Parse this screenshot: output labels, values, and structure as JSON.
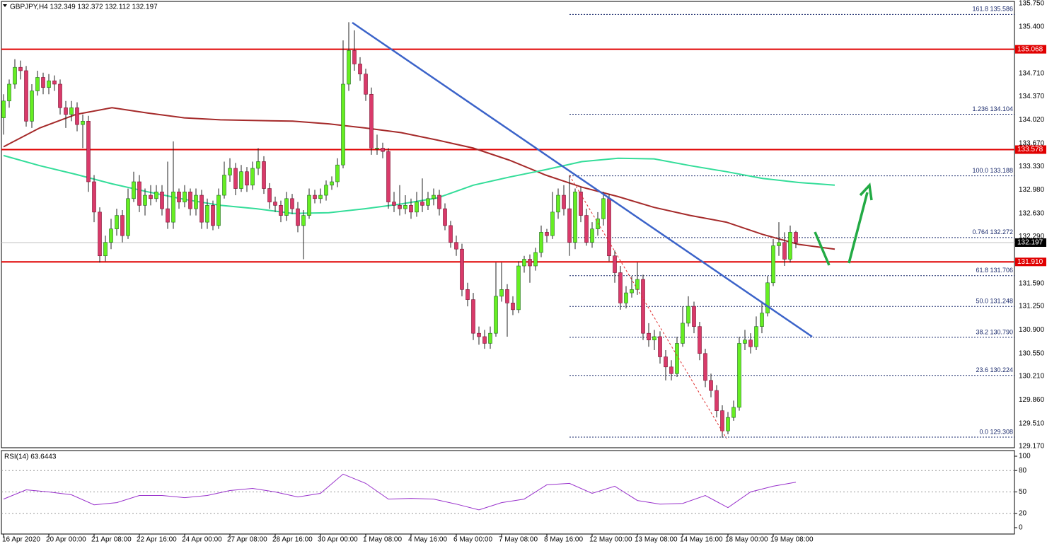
{
  "chart_data": {
    "type": "candlestick",
    "title": "GBPJPY,H4  132.349 132.372 132.112 132.197",
    "bull_color": "#66ee22",
    "bear_color": "#d93a6a",
    "ylim": [
      129.15,
      135.8
    ],
    "yticks": [
      {
        "value": 135.75,
        "label": "135.750"
      },
      {
        "value": 135.4,
        "label": "135.400"
      },
      {
        "value": 134.71,
        "label": "134.710"
      },
      {
        "value": 134.37,
        "label": "134.370"
      },
      {
        "value": 134.02,
        "label": "134.020"
      },
      {
        "value": 133.67,
        "label": "133.670"
      },
      {
        "value": 133.33,
        "label": "133.330"
      },
      {
        "value": 132.98,
        "label": "132.980"
      },
      {
        "value": 132.63,
        "label": "132.630"
      },
      {
        "value": 132.29,
        "label": "132.290"
      },
      {
        "value": 131.59,
        "label": "131.590"
      },
      {
        "value": 131.25,
        "label": "131.250"
      },
      {
        "value": 130.9,
        "label": "130.900"
      },
      {
        "value": 130.55,
        "label": "130.550"
      },
      {
        "value": 130.21,
        "label": "130.210"
      },
      {
        "value": 129.86,
        "label": "129.860"
      },
      {
        "value": 129.51,
        "label": "129.510"
      },
      {
        "value": 129.17,
        "label": "129.170"
      }
    ],
    "xticklabels": [
      "16 Apr 2020",
      "20 Apr 00:00",
      "21 Apr 08:00",
      "22 Apr 16:00",
      "24 Apr 00:00",
      "27 Apr 08:00",
      "28 Apr 16:00",
      "30 Apr 00:00",
      "1 May 08:00",
      "4 May 16:00",
      "6 May 00:00",
      "7 May 08:00",
      "8 May 16:00",
      "12 May 00:00",
      "13 May 08:00",
      "14 May 16:00",
      "18 May 00:00",
      "19 May 08:00"
    ],
    "open": [
      134.05,
      134.3,
      134.55,
      134.8,
      134.75,
      134.0,
      134.45,
      134.65,
      134.5,
      134.6,
      134.55,
      134.2,
      134.1,
      134.2,
      133.95,
      134.0,
      133.1,
      132.65,
      132.0,
      132.2,
      132.4,
      132.6,
      132.3,
      132.85,
      133.1,
      132.75,
      132.9,
      132.85,
      132.95,
      132.7,
      132.5,
      132.95,
      132.8,
      132.95,
      132.7,
      132.9,
      132.5,
      132.75,
      132.45,
      132.9,
      133.2,
      133.3,
      133.0,
      133.25,
      133.05,
      133.3,
      133.4,
      133.0,
      132.8,
      132.75,
      132.6,
      132.85,
      132.7,
      132.45,
      132.6,
      132.9,
      132.85,
      132.9,
      133.05,
      133.1,
      133.35,
      134.55,
      135.05,
      134.85,
      134.7,
      134.4,
      133.6,
      133.6,
      133.55,
      132.8,
      132.75,
      132.7,
      132.75,
      132.65,
      132.8,
      132.75,
      132.85,
      132.9,
      132.7,
      132.45,
      132.2,
      132.1,
      131.5,
      131.35,
      130.85,
      130.8,
      130.7,
      130.85,
      131.4,
      131.5,
      131.3,
      131.2,
      131.85,
      131.95,
      131.85,
      132.05,
      132.35,
      132.3,
      132.65,
      132.9,
      132.7,
      132.2,
      132.95,
      132.6,
      132.2,
      132.4,
      132.55,
      132.85,
      132.0,
      131.75,
      131.3,
      131.45,
      131.5,
      131.65,
      130.85,
      130.75,
      130.8,
      130.5,
      130.35,
      130.25,
      130.7,
      131.0,
      131.25,
      130.95,
      130.55,
      130.15,
      130.0,
      129.7,
      129.4,
      129.6,
      129.75,
      130.7,
      130.75,
      130.65,
      130.95,
      131.15,
      131.6,
      132.15,
      132.2,
      131.95,
      132.349
    ],
    "high": [
      134.4,
      134.62,
      134.92,
      134.9,
      134.82,
      134.55,
      134.75,
      134.72,
      134.7,
      134.68,
      134.62,
      134.3,
      134.3,
      134.28,
      134.1,
      134.08,
      133.2,
      132.72,
      132.3,
      132.55,
      132.7,
      132.68,
      133.0,
      133.25,
      133.2,
      133.0,
      133.05,
      133.05,
      133.05,
      133.4,
      133.7,
      133.0,
      133.05,
      133.0,
      133.0,
      132.98,
      132.85,
      132.82,
      133.0,
      133.4,
      133.45,
      133.38,
      133.35,
      133.32,
      133.4,
      133.6,
      133.48,
      133.08,
      132.88,
      132.82,
      132.95,
      132.92,
      132.8,
      132.68,
      133.0,
      132.98,
      133.0,
      133.12,
      133.18,
      133.45,
      135.2,
      135.47,
      135.35,
      134.95,
      134.78,
      134.5,
      133.8,
      133.68,
      133.6,
      132.95,
      133.05,
      132.9,
      132.85,
      132.95,
      133.15,
      132.95,
      133.0,
      132.98,
      132.78,
      132.52,
      132.3,
      132.18,
      131.6,
      131.45,
      130.95,
      130.9,
      130.95,
      131.9,
      131.9,
      131.58,
      131.4,
      131.92,
      132.0,
      132.02,
      132.12,
      132.45,
      132.4,
      132.95,
      133.0,
      133.05,
      133.2,
      133.0,
      133.02,
      132.7,
      132.5,
      132.65,
      132.95,
      132.92,
      132.08,
      131.85,
      131.55,
      131.7,
      131.9,
      131.72,
      131.0,
      130.9,
      130.88,
      130.6,
      130.45,
      130.8,
      131.25,
      131.4,
      131.32,
      131.02,
      130.62,
      130.25,
      130.08,
      129.78,
      129.68,
      129.85,
      130.8,
      130.9,
      130.85,
      131.1,
      131.3,
      131.7,
      132.25,
      132.5,
      132.35,
      132.45,
      132.372
    ],
    "low": [
      133.8,
      134.2,
      134.48,
      134.62,
      133.92,
      133.9,
      134.38,
      134.4,
      134.4,
      134.45,
      134.1,
      133.9,
      134.0,
      133.85,
      133.6,
      132.95,
      132.5,
      131.9,
      131.92,
      132.1,
      132.3,
      132.2,
      132.25,
      132.8,
      132.65,
      132.6,
      132.75,
      132.8,
      132.6,
      132.4,
      132.4,
      132.7,
      132.72,
      132.6,
      132.6,
      132.4,
      132.4,
      132.38,
      132.4,
      132.85,
      133.1,
      132.9,
      132.95,
      132.95,
      132.98,
      133.2,
      132.92,
      132.7,
      132.65,
      132.5,
      132.52,
      132.62,
      132.35,
      131.95,
      132.55,
      132.78,
      132.78,
      132.82,
      132.98,
      133.02,
      133.3,
      134.45,
      134.75,
      134.6,
      134.3,
      133.5,
      133.5,
      133.45,
      132.7,
      132.65,
      132.6,
      132.62,
      132.55,
      132.58,
      132.65,
      132.68,
      132.75,
      132.6,
      132.38,
      132.12,
      132.0,
      131.4,
      131.25,
      130.75,
      130.68,
      130.62,
      130.62,
      130.8,
      131.32,
      130.8,
      131.12,
      131.15,
      131.75,
      131.6,
      131.78,
      131.98,
      132.2,
      132.25,
      132.55,
      132.6,
      132.0,
      132.1,
      132.5,
      132.15,
      132.12,
      132.3,
      132.45,
      131.92,
      131.6,
      131.2,
      131.22,
      131.38,
      131.42,
      130.75,
      130.65,
      130.6,
      130.4,
      130.15,
      130.15,
      130.2,
      130.65,
      130.95,
      130.85,
      130.45,
      130.05,
      129.9,
      129.6,
      129.3,
      129.35,
      129.55,
      129.7,
      130.6,
      130.55,
      130.6,
      130.85,
      131.1,
      131.55,
      132.0,
      131.85,
      131.9,
      132.112
    ],
    "close": [
      134.3,
      134.55,
      134.8,
      134.75,
      134.0,
      134.45,
      134.65,
      134.5,
      134.6,
      134.55,
      134.2,
      134.1,
      134.2,
      133.95,
      134.0,
      133.1,
      132.65,
      132.0,
      132.2,
      132.4,
      132.6,
      132.3,
      132.85,
      133.1,
      132.75,
      132.9,
      132.85,
      132.95,
      132.7,
      132.5,
      132.95,
      132.8,
      132.95,
      132.7,
      132.9,
      132.5,
      132.75,
      132.45,
      132.9,
      133.2,
      133.3,
      133.0,
      133.25,
      133.05,
      133.3,
      133.4,
      133.0,
      132.8,
      132.75,
      132.6,
      132.85,
      132.7,
      132.45,
      132.6,
      132.9,
      132.85,
      132.9,
      133.05,
      133.1,
      133.35,
      134.55,
      135.05,
      134.85,
      134.7,
      134.4,
      133.6,
      133.6,
      133.55,
      132.8,
      132.75,
      132.7,
      132.75,
      132.65,
      132.8,
      132.75,
      132.85,
      132.9,
      132.7,
      132.45,
      132.2,
      132.1,
      131.5,
      131.35,
      130.85,
      130.8,
      130.7,
      130.85,
      131.4,
      131.5,
      131.3,
      131.2,
      131.85,
      131.95,
      131.85,
      132.05,
      132.35,
      132.3,
      132.65,
      132.9,
      132.7,
      132.2,
      132.95,
      132.6,
      132.2,
      132.4,
      132.55,
      132.85,
      132.0,
      131.75,
      131.3,
      131.45,
      131.5,
      131.65,
      130.85,
      130.75,
      130.8,
      130.5,
      130.35,
      130.25,
      130.7,
      131.0,
      131.25,
      130.95,
      130.55,
      130.15,
      130.0,
      129.7,
      129.4,
      129.6,
      129.75,
      130.7,
      130.75,
      130.65,
      130.95,
      131.15,
      131.6,
      132.15,
      132.2,
      131.95,
      132.35,
      132.197
    ],
    "moving_averages": [
      {
        "color": "#a52a2a",
        "values": [
          133.62,
          133.9,
          134.1,
          134.2,
          134.12,
          134.05,
          134.02,
          134.01,
          134.0,
          133.96,
          133.9,
          133.83,
          133.72,
          133.6,
          133.42,
          133.2,
          133.02,
          132.88,
          132.72,
          132.6,
          132.5,
          132.32,
          132.17,
          132.1
        ]
      },
      {
        "color": "#33dd99",
        "values": [
          133.49,
          133.34,
          133.21,
          133.07,
          132.95,
          132.84,
          132.75,
          132.7,
          132.63,
          132.64,
          132.7,
          132.77,
          132.86,
          133.05,
          133.17,
          133.28,
          133.4,
          133.45,
          133.44,
          133.34,
          133.25,
          133.15,
          133.09,
          133.05
        ]
      }
    ],
    "levels": {
      "color": "#e00000",
      "values": [
        {
          "value": 135.068,
          "label": "135.068"
        },
        {
          "value": 133.578,
          "label": "133.578"
        },
        {
          "value": 131.91,
          "label": "131.910"
        }
      ]
    },
    "current_price": {
      "value": 132.197,
      "label": "132.197"
    },
    "fibonacci": [
      {
        "value": 135.586,
        "label": "161.8 135.586"
      },
      {
        "value": 134.104,
        "label": "1.236 134.104"
      },
      {
        "value": 133.188,
        "label": "100.0 133.188"
      },
      {
        "value": 132.272,
        "label": "0.764 132.272"
      },
      {
        "value": 131.706,
        "label": "61.8 131.706"
      },
      {
        "value": 131.248,
        "label": "50.0 131.248"
      },
      {
        "value": 130.79,
        "label": "38.2 130.790"
      },
      {
        "value": 130.224,
        "label": "23.6 130.224"
      },
      {
        "value": 129.308,
        "label": "0.0 129.308"
      }
    ],
    "rsi": {
      "title": "RSI(14) 63.6443",
      "color": "#9932cc",
      "ylim": [
        0,
        100
      ],
      "yticks": [
        100,
        80,
        50,
        20,
        0
      ],
      "values": [
        40,
        53,
        50,
        46,
        32,
        35,
        45,
        45,
        42,
        45,
        52,
        55,
        50,
        43,
        48,
        75,
        62,
        40,
        41,
        40,
        33,
        25,
        35,
        40,
        60,
        62,
        48,
        58,
        38,
        33,
        34,
        45,
        28,
        50,
        58,
        63.6443
      ]
    }
  }
}
